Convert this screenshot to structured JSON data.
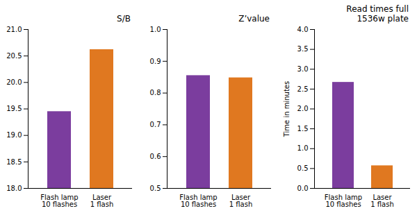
{
  "chart_data": [
    {
      "type": "bar",
      "title": "S/B",
      "categories": [
        "Flash lamp\n10 flashes",
        "Laser\n1 flash"
      ],
      "values": [
        19.45,
        20.62
      ],
      "colors": [
        "#7b3d9e",
        "#e07820"
      ],
      "ylim": [
        18.0,
        21.0
      ],
      "yticks": [
        {
          "value": 18.0,
          "label": "18.0"
        },
        18.5,
        {
          "value": 19.0,
          "label": "19.0"
        },
        19.5,
        {
          "value": 20.0,
          "label": "20.0"
        },
        20.5,
        {
          "value": 21.0,
          "label": "21.0"
        }
      ],
      "grid": false
    },
    {
      "type": "bar",
      "title": "Z’value",
      "categories": [
        "Flash lamp\n10 flashes",
        "Laser\n1 flash"
      ],
      "values": [
        0.855,
        0.848
      ],
      "colors": [
        "#7b3d9e",
        "#e07820"
      ],
      "ylim": [
        0.5,
        1.0
      ],
      "yticks": [
        0.5,
        0.6,
        0.7,
        0.8,
        0.9,
        {
          "value": 1.0,
          "label": "1.0"
        }
      ],
      "grid": false
    },
    {
      "type": "bar",
      "title": "Read times full\n1536w plate",
      "ylabel": "Time in minutes",
      "categories": [
        "Flash lamp\n10 flashes",
        "Laser\n1 flash"
      ],
      "values": [
        2.67,
        0.57
      ],
      "colors": [
        "#7b3d9e",
        "#e07820"
      ],
      "ylim": [
        0,
        4
      ],
      "yticks": [
        {
          "value": 0,
          "label": "0.0"
        },
        0.5,
        {
          "value": 1.0,
          "label": "1.0"
        },
        1.5,
        {
          "value": 2.0,
          "label": "2.0"
        },
        2.5,
        {
          "value": 3.0,
          "label": "3.0"
        },
        3.5,
        {
          "value": 4.0,
          "label": "4.0"
        }
      ],
      "grid": false
    }
  ]
}
